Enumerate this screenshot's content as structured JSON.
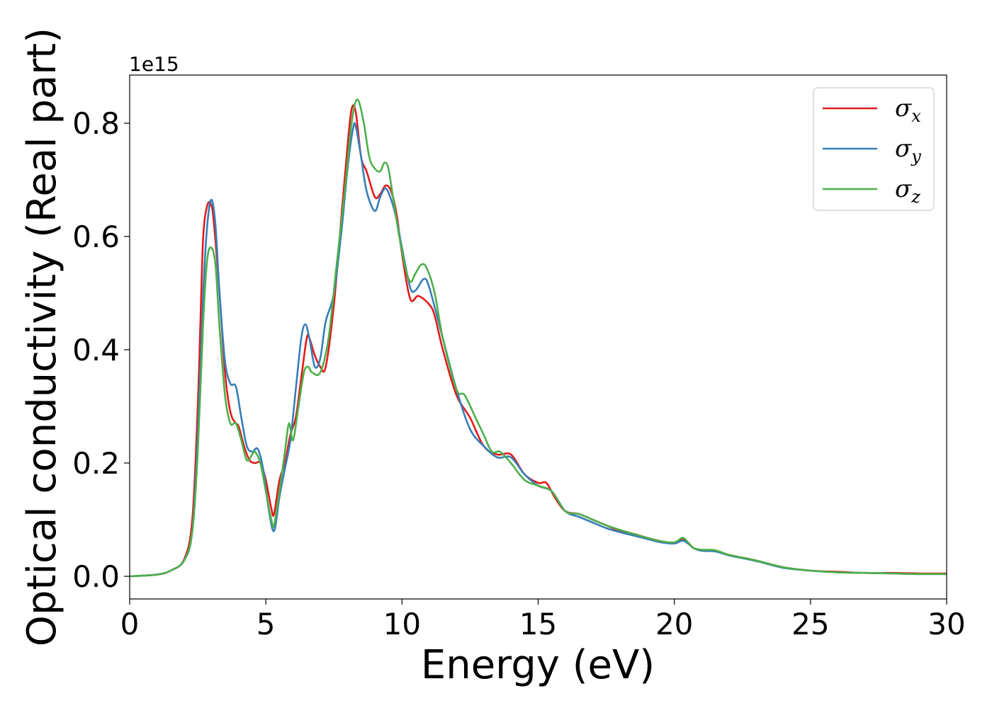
{
  "chart_data": {
    "type": "line",
    "title": "",
    "xlabel": "Energy (eV)",
    "ylabel": "Optical conductivity (Real part)",
    "y_offset_label": "1e15",
    "xlim": [
      0,
      30
    ],
    "ylim": [
      -0.04,
      0.885
    ],
    "x_ticks": [
      0,
      5,
      10,
      15,
      20,
      25,
      30
    ],
    "x_tick_labels": [
      "0",
      "5",
      "10",
      "15",
      "20",
      "25",
      "30"
    ],
    "y_ticks": [
      0.0,
      0.2,
      0.4,
      0.6,
      0.8
    ],
    "y_tick_labels": [
      "0.0",
      "0.2",
      "0.4",
      "0.6",
      "0.8"
    ],
    "grid": false,
    "legend_position": "top-right",
    "series": [
      {
        "name": "σ",
        "subscript": "x",
        "color": "#e41a1c",
        "points": [
          [
            0,
            0
          ],
          [
            1,
            0.003
          ],
          [
            1.5,
            0.01
          ],
          [
            2,
            0.03
          ],
          [
            2.3,
            0.1
          ],
          [
            2.5,
            0.3
          ],
          [
            2.6,
            0.45
          ],
          [
            2.7,
            0.6
          ],
          [
            2.85,
            0.655
          ],
          [
            3.0,
            0.655
          ],
          [
            3.1,
            0.62
          ],
          [
            3.3,
            0.5
          ],
          [
            3.5,
            0.36
          ],
          [
            3.7,
            0.29
          ],
          [
            3.9,
            0.27
          ],
          [
            4.0,
            0.265
          ],
          [
            4.2,
            0.23
          ],
          [
            4.4,
            0.205
          ],
          [
            4.6,
            0.2
          ],
          [
            4.8,
            0.2
          ],
          [
            5.0,
            0.17
          ],
          [
            5.2,
            0.12
          ],
          [
            5.3,
            0.11
          ],
          [
            5.5,
            0.17
          ],
          [
            5.7,
            0.2
          ],
          [
            5.9,
            0.25
          ],
          [
            6.1,
            0.28
          ],
          [
            6.3,
            0.35
          ],
          [
            6.5,
            0.42
          ],
          [
            6.6,
            0.42
          ],
          [
            6.8,
            0.39
          ],
          [
            7.0,
            0.37
          ],
          [
            7.2,
            0.37
          ],
          [
            7.5,
            0.48
          ],
          [
            7.8,
            0.65
          ],
          [
            8.0,
            0.76
          ],
          [
            8.15,
            0.825
          ],
          [
            8.3,
            0.82
          ],
          [
            8.5,
            0.74
          ],
          [
            8.7,
            0.715
          ],
          [
            9.0,
            0.67
          ],
          [
            9.2,
            0.675
          ],
          [
            9.4,
            0.69
          ],
          [
            9.6,
            0.68
          ],
          [
            9.8,
            0.64
          ],
          [
            10.0,
            0.57
          ],
          [
            10.3,
            0.49
          ],
          [
            10.6,
            0.495
          ],
          [
            11.0,
            0.48
          ],
          [
            11.2,
            0.46
          ],
          [
            11.5,
            0.4
          ],
          [
            12.0,
            0.32
          ],
          [
            12.5,
            0.28
          ],
          [
            13.0,
            0.23
          ],
          [
            13.5,
            0.215
          ],
          [
            14.0,
            0.215
          ],
          [
            14.5,
            0.18
          ],
          [
            15.0,
            0.165
          ],
          [
            15.3,
            0.165
          ],
          [
            15.6,
            0.14
          ],
          [
            16.0,
            0.115
          ],
          [
            16.5,
            0.11
          ],
          [
            17.0,
            0.1
          ],
          [
            17.5,
            0.09
          ],
          [
            18.0,
            0.08
          ],
          [
            18.5,
            0.075
          ],
          [
            19.0,
            0.068
          ],
          [
            19.5,
            0.062
          ],
          [
            20.0,
            0.058
          ],
          [
            20.3,
            0.066
          ],
          [
            20.5,
            0.06
          ],
          [
            20.7,
            0.05
          ],
          [
            21.0,
            0.046
          ],
          [
            21.5,
            0.045
          ],
          [
            22.0,
            0.038
          ],
          [
            23.0,
            0.028
          ],
          [
            24.0,
            0.016
          ],
          [
            25.0,
            0.01
          ],
          [
            26.0,
            0.008
          ],
          [
            27.0,
            0.006
          ],
          [
            28.0,
            0.006
          ],
          [
            29.0,
            0.005
          ],
          [
            30.0,
            0.005
          ]
        ]
      },
      {
        "name": "σ",
        "subscript": "y",
        "color": "#377eb8",
        "points": [
          [
            0,
            0
          ],
          [
            1,
            0.003
          ],
          [
            1.5,
            0.01
          ],
          [
            2,
            0.028
          ],
          [
            2.3,
            0.08
          ],
          [
            2.5,
            0.25
          ],
          [
            2.7,
            0.5
          ],
          [
            2.85,
            0.62
          ],
          [
            3.0,
            0.665
          ],
          [
            3.15,
            0.62
          ],
          [
            3.3,
            0.5
          ],
          [
            3.5,
            0.38
          ],
          [
            3.7,
            0.34
          ],
          [
            3.9,
            0.335
          ],
          [
            4.1,
            0.28
          ],
          [
            4.3,
            0.23
          ],
          [
            4.5,
            0.22
          ],
          [
            4.7,
            0.225
          ],
          [
            4.9,
            0.19
          ],
          [
            5.1,
            0.12
          ],
          [
            5.3,
            0.08
          ],
          [
            5.5,
            0.14
          ],
          [
            5.7,
            0.19
          ],
          [
            5.9,
            0.24
          ],
          [
            6.1,
            0.33
          ],
          [
            6.3,
            0.42
          ],
          [
            6.45,
            0.445
          ],
          [
            6.6,
            0.42
          ],
          [
            6.8,
            0.37
          ],
          [
            7.0,
            0.385
          ],
          [
            7.2,
            0.45
          ],
          [
            7.5,
            0.5
          ],
          [
            7.8,
            0.62
          ],
          [
            8.0,
            0.72
          ],
          [
            8.2,
            0.79
          ],
          [
            8.3,
            0.795
          ],
          [
            8.5,
            0.74
          ],
          [
            8.7,
            0.68
          ],
          [
            9.0,
            0.645
          ],
          [
            9.2,
            0.67
          ],
          [
            9.4,
            0.685
          ],
          [
            9.6,
            0.665
          ],
          [
            9.8,
            0.63
          ],
          [
            10.0,
            0.58
          ],
          [
            10.3,
            0.51
          ],
          [
            10.5,
            0.505
          ],
          [
            10.8,
            0.525
          ],
          [
            11.0,
            0.51
          ],
          [
            11.5,
            0.42
          ],
          [
            12.0,
            0.33
          ],
          [
            12.5,
            0.26
          ],
          [
            13.0,
            0.23
          ],
          [
            13.5,
            0.21
          ],
          [
            14.0,
            0.21
          ],
          [
            14.5,
            0.18
          ],
          [
            15.0,
            0.16
          ],
          [
            15.5,
            0.15
          ],
          [
            16.0,
            0.115
          ],
          [
            16.5,
            0.105
          ],
          [
            17.0,
            0.095
          ],
          [
            17.5,
            0.085
          ],
          [
            18.0,
            0.078
          ],
          [
            18.5,
            0.072
          ],
          [
            19.0,
            0.066
          ],
          [
            19.5,
            0.06
          ],
          [
            20.0,
            0.058
          ],
          [
            20.3,
            0.063
          ],
          [
            20.5,
            0.058
          ],
          [
            20.7,
            0.05
          ],
          [
            21.0,
            0.045
          ],
          [
            21.5,
            0.044
          ],
          [
            22.0,
            0.037
          ],
          [
            23.0,
            0.027
          ],
          [
            24.0,
            0.015
          ],
          [
            25.0,
            0.01
          ],
          [
            26.0,
            0.007
          ],
          [
            27.0,
            0.006
          ],
          [
            28.0,
            0.005
          ],
          [
            29.0,
            0.004
          ],
          [
            30.0,
            0.004
          ]
        ]
      },
      {
        "name": "σ",
        "subscript": "z",
        "color": "#4daf4a",
        "points": [
          [
            0,
            0
          ],
          [
            1,
            0.003
          ],
          [
            1.5,
            0.01
          ],
          [
            2,
            0.028
          ],
          [
            2.3,
            0.08
          ],
          [
            2.5,
            0.22
          ],
          [
            2.7,
            0.45
          ],
          [
            2.85,
            0.56
          ],
          [
            3.0,
            0.58
          ],
          [
            3.15,
            0.55
          ],
          [
            3.3,
            0.44
          ],
          [
            3.5,
            0.32
          ],
          [
            3.7,
            0.27
          ],
          [
            3.9,
            0.27
          ],
          [
            4.1,
            0.24
          ],
          [
            4.3,
            0.205
          ],
          [
            4.5,
            0.215
          ],
          [
            4.6,
            0.22
          ],
          [
            4.8,
            0.2
          ],
          [
            5.0,
            0.15
          ],
          [
            5.2,
            0.1
          ],
          [
            5.3,
            0.09
          ],
          [
            5.5,
            0.15
          ],
          [
            5.7,
            0.22
          ],
          [
            5.85,
            0.27
          ],
          [
            6.0,
            0.24
          ],
          [
            6.2,
            0.3
          ],
          [
            6.4,
            0.36
          ],
          [
            6.55,
            0.37
          ],
          [
            6.7,
            0.36
          ],
          [
            7.0,
            0.36
          ],
          [
            7.3,
            0.42
          ],
          [
            7.6,
            0.55
          ],
          [
            7.9,
            0.68
          ],
          [
            8.1,
            0.78
          ],
          [
            8.25,
            0.83
          ],
          [
            8.4,
            0.84
          ],
          [
            8.6,
            0.8
          ],
          [
            8.8,
            0.74
          ],
          [
            9.0,
            0.72
          ],
          [
            9.2,
            0.715
          ],
          [
            9.35,
            0.73
          ],
          [
            9.5,
            0.72
          ],
          [
            9.7,
            0.66
          ],
          [
            9.9,
            0.6
          ],
          [
            10.1,
            0.55
          ],
          [
            10.3,
            0.52
          ],
          [
            10.5,
            0.535
          ],
          [
            10.7,
            0.55
          ],
          [
            10.9,
            0.545
          ],
          [
            11.2,
            0.5
          ],
          [
            11.5,
            0.42
          ],
          [
            12.0,
            0.33
          ],
          [
            12.3,
            0.32
          ],
          [
            12.7,
            0.28
          ],
          [
            13.0,
            0.25
          ],
          [
            13.3,
            0.22
          ],
          [
            13.6,
            0.22
          ],
          [
            14.0,
            0.2
          ],
          [
            14.5,
            0.17
          ],
          [
            15.0,
            0.16
          ],
          [
            15.5,
            0.15
          ],
          [
            16.0,
            0.115
          ],
          [
            16.5,
            0.11
          ],
          [
            17.0,
            0.1
          ],
          [
            17.5,
            0.09
          ],
          [
            18.0,
            0.082
          ],
          [
            18.5,
            0.075
          ],
          [
            19.0,
            0.068
          ],
          [
            19.5,
            0.062
          ],
          [
            20.0,
            0.06
          ],
          [
            20.3,
            0.068
          ],
          [
            20.5,
            0.06
          ],
          [
            20.7,
            0.05
          ],
          [
            21.0,
            0.047
          ],
          [
            21.5,
            0.046
          ],
          [
            22.0,
            0.038
          ],
          [
            23.0,
            0.028
          ],
          [
            24.0,
            0.016
          ],
          [
            25.0,
            0.01
          ],
          [
            26.0,
            0.007
          ],
          [
            27.0,
            0.006
          ],
          [
            28.0,
            0.005
          ],
          [
            29.0,
            0.004
          ],
          [
            30.0,
            0.004
          ]
        ]
      }
    ]
  }
}
